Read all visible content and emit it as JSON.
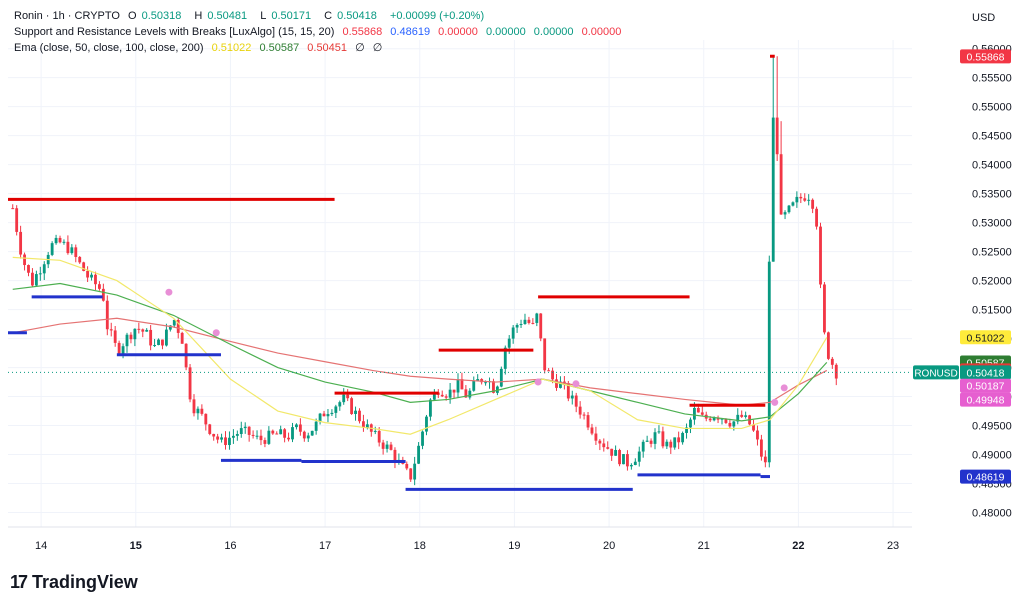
{
  "legend": {
    "symbol": "Ronin · 1h · CRYPTO",
    "o_label": "O",
    "o": "0.50318",
    "h_label": "H",
    "h": "0.50481",
    "l_label": "L",
    "l": "0.50171",
    "c_label": "C",
    "c": "0.50418",
    "change": "+0.00099 (+0.20%)",
    "sr_name": "Support and Resistance Levels with Breaks [LuxAlgo] (15, 15, 20)",
    "sr_v1": "0.55868",
    "sr_v2": "0.48619",
    "sr_v3": "0.00000",
    "sr_v4": "0.00000",
    "sr_v5": "0.00000",
    "sr_v6": "0.00000",
    "ema_name": "Ema (close, 50, close, 100, close, 200)",
    "ema_v1": "0.51022",
    "ema_v2": "0.50587",
    "ema_v3": "0.50451",
    "ema_v4": "∅",
    "ema_v5": "∅"
  },
  "currency": "USD",
  "brand": {
    "mark": "17",
    "name": "TradingView"
  },
  "colors": {
    "up": "#089981",
    "down": "#f23645",
    "ema50": "#f2e86a",
    "ema100": "#4caf50",
    "ema200": "#e57373",
    "resistance": "#e00000",
    "support": "#2233cc",
    "marker": "#e88fd6"
  },
  "chart_data": {
    "type": "line",
    "title": "Ronin · 1h · CRYPTO",
    "ylim": [
      0.4775,
      0.5615
    ],
    "xlim": [
      13.65,
      23.2
    ],
    "y_ticks": [
      0.48,
      0.485,
      0.49,
      0.495,
      0.5,
      0.505,
      0.51,
      0.515,
      0.52,
      0.525,
      0.53,
      0.535,
      0.54,
      0.545,
      0.55,
      0.555,
      0.56
    ],
    "y_tick_labels": [
      "0.48000",
      "0.48500",
      "0.49000",
      "0.49500",
      "0.50000",
      "0.50500",
      "0.51000",
      "0.51500",
      "0.52000",
      "0.52500",
      "0.53000",
      "0.53500",
      "0.54000",
      "0.54500",
      "0.55000",
      "0.55500",
      "0.56000"
    ],
    "x_ticks": [
      14,
      15,
      16,
      17,
      18,
      19,
      20,
      21,
      22,
      23
    ],
    "x_tick_labels": [
      "14",
      "15",
      "16",
      "17",
      "18",
      "19",
      "20",
      "21",
      "22",
      "23"
    ],
    "bold_x_labels": [
      "15",
      "22"
    ],
    "close_series": [
      [
        13.7,
        0.5325
      ],
      [
        13.8,
        0.524
      ],
      [
        13.9,
        0.5195
      ],
      [
        14.0,
        0.5225
      ],
      [
        14.1,
        0.526
      ],
      [
        14.2,
        0.5265
      ],
      [
        14.3,
        0.5255
      ],
      [
        14.4,
        0.523
      ],
      [
        14.5,
        0.5205
      ],
      [
        14.6,
        0.519
      ],
      [
        14.65,
        0.518
      ],
      [
        14.7,
        0.512
      ],
      [
        14.8,
        0.508
      ],
      [
        14.9,
        0.51
      ],
      [
        15.0,
        0.512
      ],
      [
        15.1,
        0.511
      ],
      [
        15.2,
        0.5085
      ],
      [
        15.3,
        0.51
      ],
      [
        15.4,
        0.5135
      ],
      [
        15.5,
        0.5095
      ],
      [
        15.55,
        0.502
      ],
      [
        15.6,
        0.4985
      ],
      [
        15.7,
        0.4965
      ],
      [
        15.8,
        0.494
      ],
      [
        15.9,
        0.492
      ],
      [
        16.0,
        0.493
      ],
      [
        16.1,
        0.494
      ],
      [
        16.2,
        0.4935
      ],
      [
        16.3,
        0.4925
      ],
      [
        16.4,
        0.493
      ],
      [
        16.5,
        0.4935
      ],
      [
        16.6,
        0.493
      ],
      [
        16.7,
        0.4945
      ],
      [
        16.8,
        0.4935
      ],
      [
        16.9,
        0.495
      ],
      [
        17.0,
        0.4975
      ],
      [
        17.1,
        0.4985
      ],
      [
        17.2,
        0.4995
      ],
      [
        17.3,
        0.4975
      ],
      [
        17.4,
        0.4955
      ],
      [
        17.5,
        0.4935
      ],
      [
        17.6,
        0.492
      ],
      [
        17.7,
        0.4905
      ],
      [
        17.8,
        0.488
      ],
      [
        17.9,
        0.486
      ],
      [
        18.0,
        0.492
      ],
      [
        18.1,
        0.499
      ],
      [
        18.2,
        0.5015
      ],
      [
        18.3,
        0.5005
      ],
      [
        18.4,
        0.502
      ],
      [
        18.5,
        0.5
      ],
      [
        18.6,
        0.5025
      ],
      [
        18.7,
        0.5035
      ],
      [
        18.8,
        0.501
      ],
      [
        18.9,
        0.5085
      ],
      [
        19.0,
        0.512
      ],
      [
        19.1,
        0.5135
      ],
      [
        19.2,
        0.512
      ],
      [
        19.25,
        0.5145
      ],
      [
        19.3,
        0.5055
      ],
      [
        19.4,
        0.503
      ],
      [
        19.5,
        0.502
      ],
      [
        19.6,
        0.4995
      ],
      [
        19.7,
        0.4975
      ],
      [
        19.8,
        0.495
      ],
      [
        19.9,
        0.4925
      ],
      [
        20.0,
        0.491
      ],
      [
        20.1,
        0.4895
      ],
      [
        20.2,
        0.4885
      ],
      [
        20.3,
        0.49
      ],
      [
        20.4,
        0.492
      ],
      [
        20.5,
        0.4935
      ],
      [
        20.6,
        0.4915
      ],
      [
        20.7,
        0.492
      ],
      [
        20.8,
        0.4935
      ],
      [
        20.9,
        0.4975
      ],
      [
        21.0,
        0.496
      ],
      [
        21.1,
        0.497
      ],
      [
        21.2,
        0.4965
      ],
      [
        21.3,
        0.4955
      ],
      [
        21.4,
        0.4965
      ],
      [
        21.5,
        0.495
      ],
      [
        21.6,
        0.4905
      ],
      [
        21.65,
        0.4875
      ],
      [
        21.7,
        0.53
      ],
      [
        21.75,
        0.556
      ],
      [
        21.8,
        0.53
      ],
      [
        21.9,
        0.532
      ],
      [
        22.0,
        0.534
      ],
      [
        22.1,
        0.535
      ],
      [
        22.15,
        0.5335
      ],
      [
        22.2,
        0.5295
      ],
      [
        22.25,
        0.513
      ],
      [
        22.3,
        0.508
      ],
      [
        22.35,
        0.506
      ],
      [
        22.4,
        0.5042
      ]
    ],
    "candle_count": 210,
    "ema50": [
      [
        13.7,
        0.524
      ],
      [
        14.2,
        0.5235
      ],
      [
        14.8,
        0.52
      ],
      [
        15.4,
        0.5135
      ],
      [
        16.0,
        0.503
      ],
      [
        16.5,
        0.4975
      ],
      [
        17.0,
        0.4955
      ],
      [
        17.5,
        0.4945
      ],
      [
        17.9,
        0.4935
      ],
      [
        18.3,
        0.496
      ],
      [
        18.8,
        0.4995
      ],
      [
        19.3,
        0.503
      ],
      [
        19.8,
        0.501
      ],
      [
        20.3,
        0.496
      ],
      [
        20.8,
        0.4945
      ],
      [
        21.4,
        0.4945
      ],
      [
        21.7,
        0.496
      ],
      [
        22.0,
        0.502
      ],
      [
        22.3,
        0.5102
      ]
    ],
    "ema100": [
      [
        13.7,
        0.5185
      ],
      [
        14.2,
        0.5195
      ],
      [
        14.8,
        0.5175
      ],
      [
        15.4,
        0.514
      ],
      [
        16.0,
        0.509
      ],
      [
        16.5,
        0.505
      ],
      [
        17.0,
        0.5025
      ],
      [
        17.5,
        0.5008
      ],
      [
        17.9,
        0.499
      ],
      [
        18.3,
        0.4995
      ],
      [
        18.8,
        0.501
      ],
      [
        19.3,
        0.503
      ],
      [
        19.8,
        0.501
      ],
      [
        20.3,
        0.499
      ],
      [
        20.8,
        0.497
      ],
      [
        21.4,
        0.4958
      ],
      [
        21.7,
        0.4965
      ],
      [
        22.0,
        0.5005
      ],
      [
        22.3,
        0.5059
      ]
    ],
    "ema200": [
      [
        13.7,
        0.511
      ],
      [
        14.2,
        0.5125
      ],
      [
        14.8,
        0.5135
      ],
      [
        15.4,
        0.512
      ],
      [
        16.0,
        0.5095
      ],
      [
        16.5,
        0.5075
      ],
      [
        17.0,
        0.506
      ],
      [
        17.5,
        0.5045
      ],
      [
        17.9,
        0.5035
      ],
      [
        18.3,
        0.503
      ],
      [
        18.8,
        0.5025
      ],
      [
        19.3,
        0.503
      ],
      [
        19.8,
        0.5015
      ],
      [
        20.3,
        0.5005
      ],
      [
        20.8,
        0.4995
      ],
      [
        21.4,
        0.4985
      ],
      [
        21.7,
        0.499
      ],
      [
        22.0,
        0.502
      ],
      [
        22.3,
        0.5045
      ]
    ],
    "resistance_levels": [
      {
        "x0": 13.65,
        "x1": 17.1,
        "y": 0.534
      },
      {
        "x0": 17.1,
        "x1": 18.2,
        "y": 0.5006
      },
      {
        "x0": 18.2,
        "x1": 19.2,
        "y": 0.508
      },
      {
        "x0": 19.25,
        "x1": 20.85,
        "y": 0.5172
      },
      {
        "x0": 20.85,
        "x1": 21.65,
        "y": 0.4985
      },
      {
        "x0": 21.7,
        "x1": 21.75,
        "y": 0.5587
      }
    ],
    "support_levels": [
      {
        "x0": 13.65,
        "x1": 13.85,
        "y": 0.511
      },
      {
        "x0": 13.9,
        "x1": 14.65,
        "y": 0.5172
      },
      {
        "x0": 14.8,
        "x1": 15.9,
        "y": 0.5072
      },
      {
        "x0": 15.9,
        "x1": 16.75,
        "y": 0.489
      },
      {
        "x0": 16.75,
        "x1": 17.85,
        "y": 0.4888
      },
      {
        "x0": 17.85,
        "x1": 20.25,
        "y": 0.484
      },
      {
        "x0": 20.3,
        "x1": 21.6,
        "y": 0.4865
      },
      {
        "x0": 21.6,
        "x1": 21.7,
        "y": 0.4862
      }
    ],
    "markers": [
      [
        15.35,
        0.518
      ],
      [
        15.85,
        0.511
      ],
      [
        19.25,
        0.5025
      ],
      [
        19.65,
        0.5022
      ],
      [
        21.75,
        0.499
      ],
      [
        21.85,
        0.5015
      ]
    ],
    "price_labels": [
      {
        "text": "0.55868",
        "value": 0.55868,
        "bg": "#f23645",
        "fg": "#ffffff"
      },
      {
        "text": "0.51022",
        "value": 0.51022,
        "bg": "#ffeb3b",
        "fg": "#131722"
      },
      {
        "text": "0.50587",
        "value": 0.50587,
        "bg": "#2e7d32",
        "fg": "#ffffff"
      },
      {
        "text": "0.50451",
        "value": 0.50451,
        "bg": "#e53935",
        "fg": "#ffffff"
      },
      {
        "text": "0.50418",
        "value": 0.50418,
        "bg": "#089981",
        "fg": "#ffffff"
      },
      {
        "text": "0.50187",
        "value": 0.50187,
        "bg": "#e65fd0",
        "fg": "#ffffff"
      },
      {
        "text": "0.49948",
        "value": 0.49948,
        "bg": "#e65fd0",
        "fg": "#ffffff"
      },
      {
        "text": "0.48619",
        "value": 0.48619,
        "bg": "#2233cc",
        "fg": "#ffffff"
      }
    ],
    "symbol_tag": "RONUSD",
    "last_price": 0.50418
  }
}
